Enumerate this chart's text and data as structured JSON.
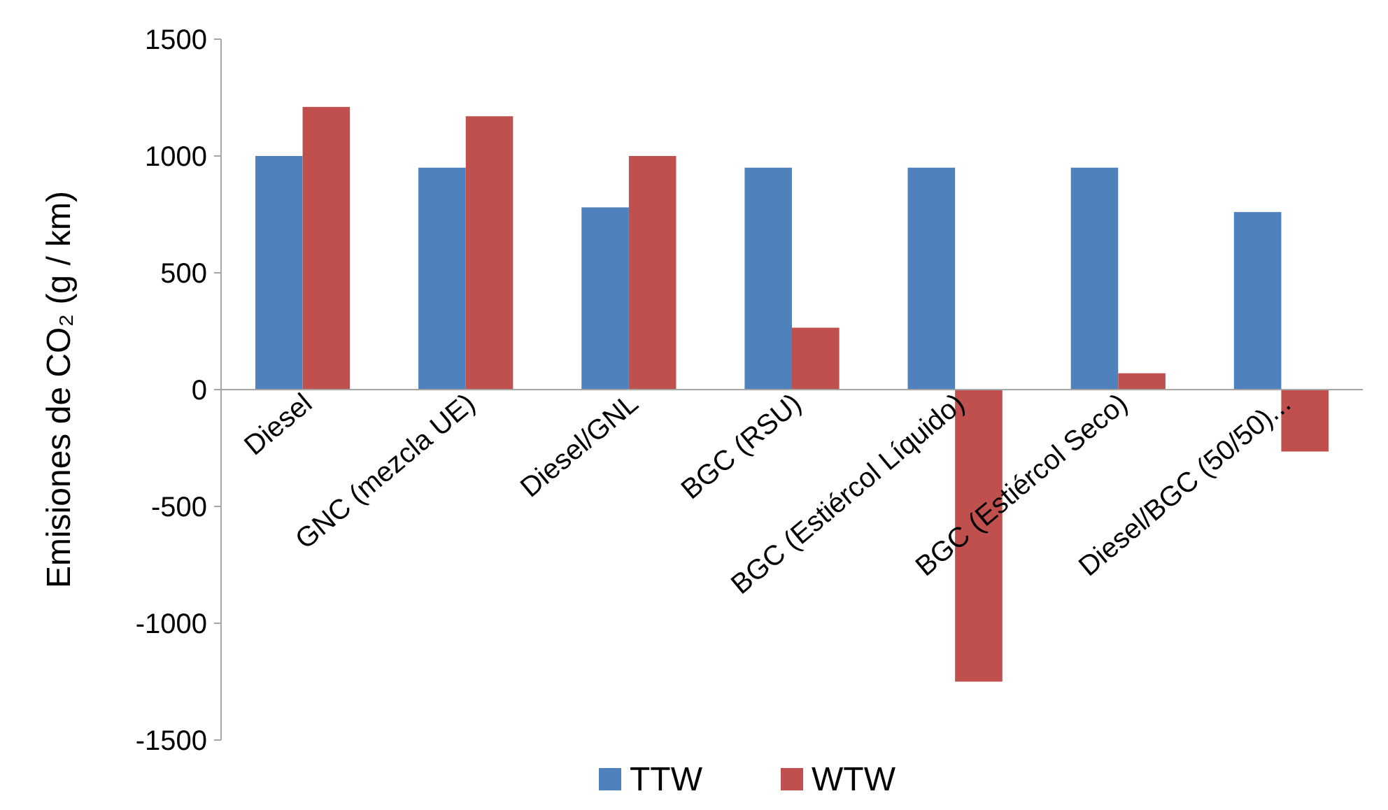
{
  "chart_data": {
    "type": "bar",
    "ylabel": "Emisiones de CO₂ (g / km)",
    "categories": [
      "Diesel",
      "GNC (mezcla UE)",
      "Diesel/GNL",
      "BGC (RSU)",
      "BGC (Estiércol Líquido)",
      "BGC (Estiércol Seco)",
      "Diesel/BGC (50/50)..."
    ],
    "series": [
      {
        "name": "TTW",
        "color": "#4f81bd",
        "values": [
          1000,
          950,
          780,
          950,
          950,
          950,
          760
        ]
      },
      {
        "name": "WTW",
        "color": "#c0504d",
        "values": [
          1210,
          1170,
          1000,
          265,
          -1250,
          70,
          -265
        ]
      }
    ],
    "ylim": [
      -1500,
      1500
    ],
    "yticks": [
      -1500,
      -1000,
      -500,
      0,
      500,
      1000,
      1500
    ],
    "legend": "bottom"
  }
}
